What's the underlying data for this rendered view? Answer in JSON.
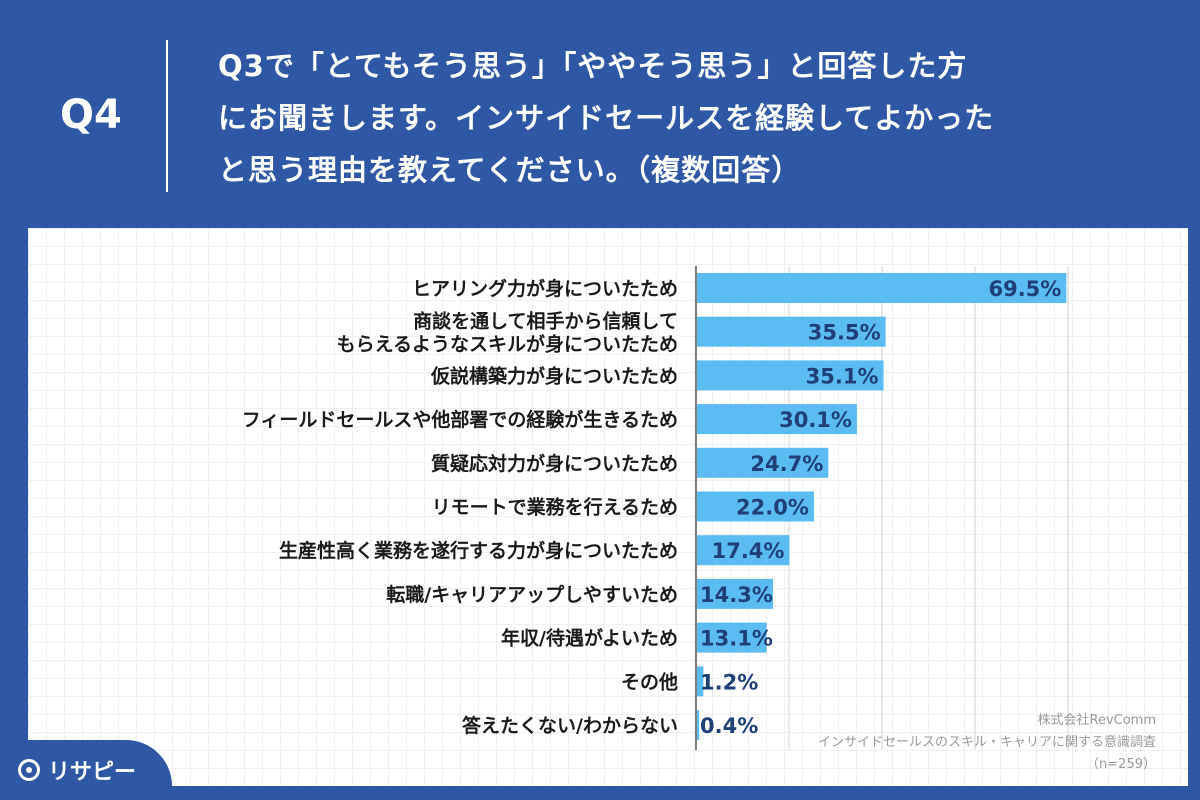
{
  "header": {
    "qnum": "Q4",
    "lines": [
      "Q3で「とてもそう思う」「ややそう思う」と回答した方",
      "にお聞きします。インサイドセールスを経験してよかった",
      "と思う理由を教えてください。（複数回答）"
    ]
  },
  "chart_data": {
    "type": "bar",
    "orientation": "horizontal",
    "categories": [
      [
        "ヒアリング力が身についたため"
      ],
      [
        "商談を通して相手から信頼して",
        "もらえるようなスキルが身についたため"
      ],
      [
        "仮説構築力が身についたため"
      ],
      [
        "フィールドセールスや他部署での経験が生きるため"
      ],
      [
        "質疑応対力が身についたため"
      ],
      [
        "リモートで業務を行えるため"
      ],
      [
        "生産性高く業務を遂行する力が身についたため"
      ],
      [
        "転職/キャリアアップしやすいため"
      ],
      [
        "年収/待遇がよいため"
      ],
      [
        "その他"
      ],
      [
        "答えたくない/わからない"
      ]
    ],
    "values": [
      69.5,
      35.5,
      35.1,
      30.1,
      24.7,
      22.0,
      17.4,
      14.3,
      13.1,
      1.2,
      0.4
    ],
    "value_labels": [
      "69.5%",
      "35.5%",
      "35.1%",
      "30.1%",
      "24.7%",
      "22.0%",
      "17.4%",
      "14.3%",
      "13.1%",
      "1.2%",
      "0.4%"
    ],
    "xlim": [
      0,
      70
    ],
    "gridlines": [
      0,
      17.5,
      35,
      52.5,
      70
    ],
    "bar_color": "#5bbcf4"
  },
  "source": {
    "company": "株式会社RevComm",
    "survey": "インサイドセールスのスキル・キャリアに関する意識調査",
    "sample": "（n=259）"
  },
  "brand": {
    "name": "リサピー"
  }
}
